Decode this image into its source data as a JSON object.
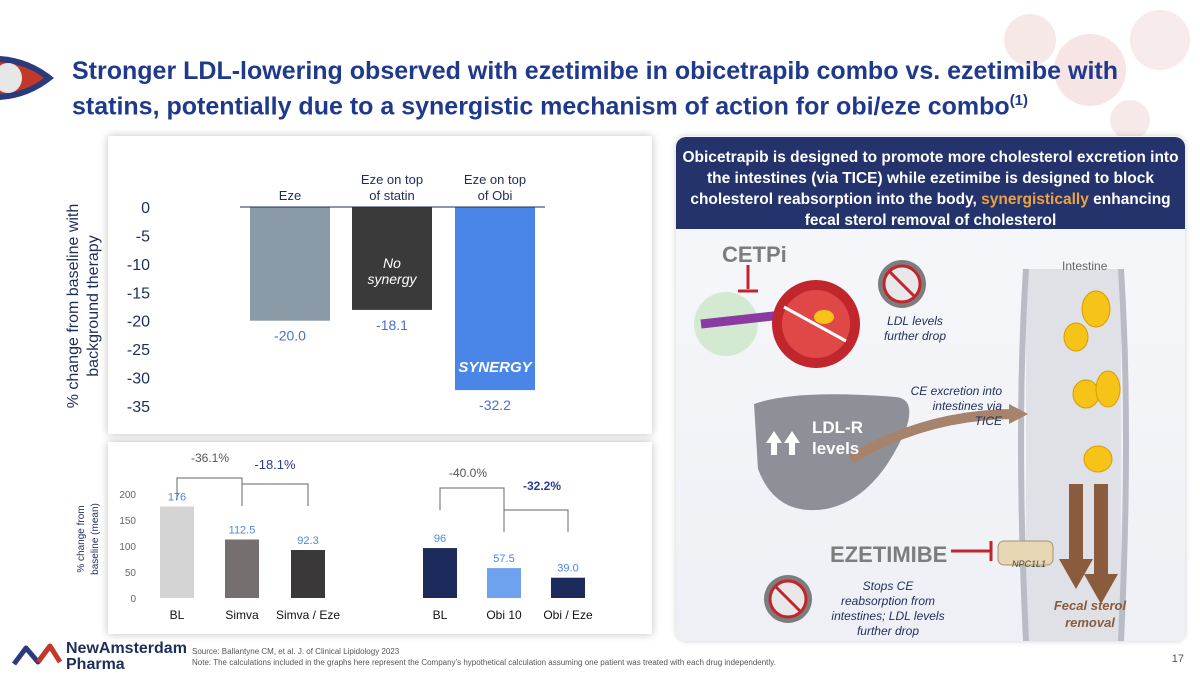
{
  "title": "Stronger LDL-lowering observed with ezetimibe in obicetrapib combo vs. ezetimibe with statins, potentially due to a synergistic mechanism of action for obi/eze combo",
  "title_ref": "(1)",
  "chart_data": [
    {
      "type": "bar",
      "categories": [
        "Eze",
        "Eze on top of statin",
        "Eze on top of Obi"
      ],
      "category_lines": [
        [
          "Eze"
        ],
        [
          "Eze on top",
          "of statin"
        ],
        [
          "Eze on top",
          "of Obi"
        ]
      ],
      "values": [
        -20.0,
        -18.1,
        -32.2
      ],
      "value_labels": [
        "-20.0",
        "-18.1",
        "-32.2"
      ],
      "colors": [
        "#8a9aa6",
        "#3a3a3a",
        "#4a86e8"
      ],
      "ylabel": "% change from baseline with background therapy",
      "ylabel_lines": [
        "% change from baseline with",
        "background therapy"
      ],
      "ylim": [
        -35,
        0
      ],
      "yticks": [
        0,
        -5,
        -10,
        -15,
        -20,
        -25,
        -30,
        -35
      ],
      "annotations": {
        "no_synergy": [
          "No",
          "synergy"
        ],
        "synergy": "SYNERGY"
      }
    },
    {
      "type": "bar",
      "categories": [
        "BL",
        "Simva",
        "Simva / Eze",
        "BL",
        "Obi 10",
        "Obi / Eze"
      ],
      "values": [
        176,
        112.5,
        92.3,
        96,
        57.5,
        39.0
      ],
      "value_labels": [
        "176",
        "112.5",
        "92.3",
        "96",
        "57.5",
        "39.0"
      ],
      "colors": [
        "#d4d4d4",
        "#75706f",
        "#3a3838",
        "#1c2a5c",
        "#6fa2ee",
        "#1c2a5c"
      ],
      "ylabel": "% change from baseline (mean)",
      "ylabel_lines": [
        "% change from",
        "baseline (mean)"
      ],
      "ylim": [
        0,
        200
      ],
      "yticks": [
        0,
        50,
        100,
        150,
        200
      ],
      "brackets": [
        "-36.1%",
        "-18.1%",
        "-40.0%",
        "-32.2%"
      ]
    }
  ],
  "mechanism": {
    "header_pre": "Obicetrapib is designed to promote more cholesterol excretion into the intestines (via TICE) while ezetimibe is designed to block cholesterol reabsorption into the body, ",
    "header_hl": "synergistically",
    "header_post": " enhancing fecal sterol removal of cholesterol",
    "cetpi": "CETPi",
    "intestine": "Intestine",
    "ldl_levels": "LDL levels further drop",
    "ce_excretion": "CE excretion into intestines via TICE",
    "ldlr": "LDL-R",
    "levels": "levels",
    "ezetimibe": "EZETIMIBE",
    "npc": "NPC1L1",
    "stops": "Stops CE reabsorption from intestines; LDL levels further drop",
    "fecal": "Fecal sterol removal"
  },
  "footer": {
    "source": "Source: Ballantyne CM, et al. J. of Clinical Lipidology 2023",
    "note": "Note: The calculations included in the graphs here represent the Company's hypothetical calculation assuming one patient was treated with each drug independently.",
    "page": "17",
    "brand1": "NewAmsterdam",
    "brand2": "Pharma"
  },
  "colors": {
    "navy": "#24336b",
    "accent": "#f0a23c",
    "blue": "#4a86e8"
  }
}
